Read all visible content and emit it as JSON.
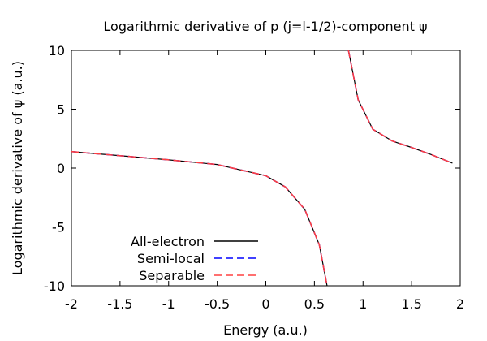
{
  "chart_data": {
    "type": "line",
    "title": "Logarithmic derivative of p (j=l-1/2)-component ψ",
    "xlabel": "Energy (a.u.)",
    "ylabel": "Logarithmic derivative of ψ (a.u.)",
    "xlim": [
      -2,
      2
    ],
    "ylim": [
      -10,
      10
    ],
    "xticks": [
      -2,
      -1.5,
      -1,
      -0.5,
      0,
      0.5,
      1,
      1.5,
      2
    ],
    "yticks": [
      -10,
      -5,
      0,
      5,
      10
    ],
    "xtick_labels": [
      "-2",
      "-1.5",
      "-1",
      "-0.5",
      "0",
      "0.5",
      "1",
      "1.5",
      "2"
    ],
    "ytick_labels": [
      "-10",
      "-5",
      "0",
      "5",
      "10"
    ],
    "grid": false,
    "legend_position": "bottom-left",
    "x_range": [
      -2,
      1.92
    ],
    "singularity_x": 0.76,
    "series": [
      {
        "name": "All-electron",
        "color": "#000000",
        "dash": "solid",
        "points": [
          [
            -2,
            1.4
          ],
          [
            -1.5,
            1.05
          ],
          [
            -1,
            0.7
          ],
          [
            -0.5,
            0.3
          ],
          [
            0,
            -0.65
          ],
          [
            0.2,
            -1.6
          ],
          [
            0.4,
            -3.5
          ],
          [
            0.55,
            -6.5
          ],
          [
            0.63,
            -10.0
          ],
          [
            0.85,
            10.0
          ],
          [
            0.95,
            5.8
          ],
          [
            1.1,
            3.3
          ],
          [
            1.3,
            2.3
          ],
          [
            1.5,
            1.75
          ],
          [
            1.7,
            1.15
          ],
          [
            1.92,
            0.42
          ]
        ]
      },
      {
        "name": "Semi-local",
        "color": "#0000ff",
        "dash": "dashed",
        "points": [
          [
            -2,
            1.4
          ],
          [
            -1.5,
            1.05
          ],
          [
            -1,
            0.7
          ],
          [
            -0.5,
            0.3
          ],
          [
            0,
            -0.65
          ],
          [
            0.2,
            -1.6
          ],
          [
            0.4,
            -3.5
          ],
          [
            0.55,
            -6.5
          ],
          [
            0.63,
            -10.0
          ],
          [
            0.85,
            10.0
          ],
          [
            0.95,
            5.8
          ],
          [
            1.1,
            3.3
          ],
          [
            1.3,
            2.3
          ],
          [
            1.5,
            1.75
          ],
          [
            1.7,
            1.15
          ],
          [
            1.92,
            0.42
          ]
        ]
      },
      {
        "name": "Separable",
        "color": "#ff4040",
        "dash": "dashed",
        "points": [
          [
            -2,
            1.4
          ],
          [
            -1.5,
            1.05
          ],
          [
            -1,
            0.7
          ],
          [
            -0.5,
            0.3
          ],
          [
            0,
            -0.65
          ],
          [
            0.2,
            -1.6
          ],
          [
            0.4,
            -3.5
          ],
          [
            0.55,
            -6.5
          ],
          [
            0.63,
            -10.0
          ],
          [
            0.85,
            10.0
          ],
          [
            0.95,
            5.8
          ],
          [
            1.1,
            3.3
          ],
          [
            1.3,
            2.3
          ],
          [
            1.5,
            1.75
          ],
          [
            1.7,
            1.15
          ],
          [
            1.92,
            0.42
          ]
        ]
      }
    ]
  }
}
